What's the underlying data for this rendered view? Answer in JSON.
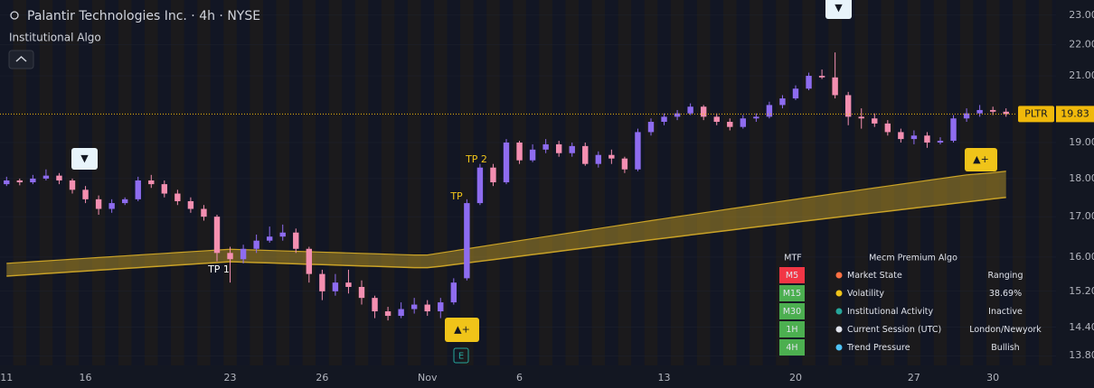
{
  "chart_data": {
    "type": "candlestick",
    "title": "Palantir Technologies Inc. · 4h · NYSE",
    "subtitle": "Institutional Algo",
    "symbol": "PLTR",
    "log_scale": true,
    "ylim": [
      13.6,
      23.53
    ],
    "yticks": [
      {
        "value": 13.8,
        "label": "13.80"
      },
      {
        "value": 14.4,
        "label": "14.40"
      },
      {
        "value": 15.2,
        "label": "15.20"
      },
      {
        "value": 16,
        "label": "16.00"
      },
      {
        "value": 17,
        "label": "17.00"
      },
      {
        "value": 18,
        "label": "18.00"
      },
      {
        "value": 19,
        "label": "19.00"
      },
      {
        "value": 21,
        "label": "21.00"
      },
      {
        "value": 22,
        "label": "22.00"
      },
      {
        "value": 23,
        "label": "23.00"
      }
    ],
    "categories": [
      "11",
      null,
      null,
      null,
      null,
      null,
      "16",
      null,
      null,
      null,
      null,
      null,
      null,
      null,
      null,
      null,
      null,
      "23",
      null,
      null,
      null,
      null,
      null,
      null,
      "26",
      null,
      null,
      null,
      null,
      null,
      null,
      null,
      "Nov",
      null,
      null,
      null,
      null,
      null,
      null,
      "6",
      null,
      null,
      null,
      null,
      null,
      null,
      null,
      null,
      null,
      null,
      "13",
      null,
      null,
      null,
      null,
      null,
      null,
      null,
      null,
      null,
      "20",
      null,
      null,
      null,
      null,
      null,
      null,
      null,
      null,
      "27",
      null,
      null,
      null,
      null,
      null,
      "30",
      null
    ],
    "open": [
      17.85,
      17.95,
      17.9,
      18.0,
      18.08,
      17.95,
      17.7,
      17.45,
      17.2,
      17.35,
      17.45,
      17.95,
      17.85,
      17.6,
      17.4,
      17.2,
      17.0,
      16.1,
      15.95,
      16.2,
      16.4,
      16.5,
      16.6,
      16.2,
      15.6,
      15.2,
      15.4,
      15.3,
      15.05,
      14.75,
      14.65,
      14.8,
      14.9,
      14.75,
      14.95,
      15.5,
      17.35,
      18.3,
      17.9,
      19.0,
      18.5,
      18.8,
      18.95,
      18.7,
      18.9,
      18.4,
      18.65,
      18.55,
      18.25,
      19.3,
      19.6,
      19.75,
      19.85,
      20.05,
      19.75,
      19.6,
      19.45,
      19.7,
      19.75,
      20.1,
      20.3,
      20.6,
      21.0,
      20.95,
      20.4,
      19.75,
      19.7,
      19.55,
      19.3,
      19.1,
      19.2,
      19.0,
      19.05,
      19.7,
      19.85,
      19.95,
      19.9
    ],
    "high": [
      18.05,
      18.0,
      18.1,
      18.25,
      18.15,
      18.0,
      17.8,
      17.55,
      17.45,
      17.5,
      18.05,
      18.1,
      17.95,
      17.7,
      17.5,
      17.3,
      17.05,
      16.25,
      16.3,
      16.55,
      16.75,
      16.8,
      16.7,
      16.25,
      15.7,
      15.6,
      15.7,
      15.45,
      15.1,
      14.85,
      14.95,
      15.05,
      15.0,
      15.05,
      15.5,
      17.45,
      18.4,
      18.4,
      19.1,
      19.05,
      18.95,
      19.1,
      19.05,
      19.0,
      19.0,
      18.75,
      18.8,
      18.6,
      19.4,
      19.7,
      19.85,
      19.95,
      20.15,
      20.1,
      19.85,
      19.7,
      19.8,
      19.85,
      20.2,
      20.4,
      20.7,
      21.1,
      21.2,
      21.75,
      20.5,
      20.0,
      19.85,
      19.65,
      19.4,
      19.35,
      19.3,
      19.15,
      19.8,
      20.0,
      20.1,
      20.05,
      20.0
    ],
    "low": [
      17.8,
      17.82,
      17.85,
      17.95,
      17.85,
      17.6,
      17.35,
      17.05,
      17.1,
      17.3,
      17.4,
      17.75,
      17.5,
      17.3,
      17.1,
      16.9,
      15.9,
      15.4,
      15.85,
      16.1,
      16.35,
      16.4,
      16.1,
      15.4,
      15.0,
      15.1,
      15.15,
      14.9,
      14.6,
      14.55,
      14.6,
      14.7,
      14.65,
      14.6,
      14.9,
      15.45,
      17.3,
      17.8,
      17.85,
      18.4,
      18.45,
      18.7,
      18.6,
      18.6,
      18.35,
      18.3,
      18.4,
      18.15,
      18.2,
      19.2,
      19.5,
      19.65,
      19.8,
      19.65,
      19.5,
      19.35,
      19.4,
      19.6,
      19.7,
      20.0,
      20.25,
      20.55,
      20.9,
      20.3,
      19.5,
      19.4,
      19.45,
      19.2,
      19.0,
      18.95,
      18.85,
      18.95,
      19.0,
      19.6,
      19.75,
      19.8,
      19.75
    ],
    "close": [
      17.95,
      17.9,
      18.0,
      18.08,
      17.95,
      17.7,
      17.45,
      17.2,
      17.35,
      17.45,
      17.95,
      17.85,
      17.6,
      17.4,
      17.2,
      17.0,
      16.1,
      15.95,
      16.2,
      16.4,
      16.5,
      16.6,
      16.2,
      15.6,
      15.2,
      15.4,
      15.3,
      15.05,
      14.75,
      14.65,
      14.8,
      14.9,
      14.75,
      14.95,
      15.4,
      17.35,
      18.3,
      17.9,
      19.0,
      18.5,
      18.8,
      18.95,
      18.7,
      18.9,
      18.4,
      18.65,
      18.55,
      18.25,
      19.3,
      19.6,
      19.75,
      19.85,
      20.05,
      19.75,
      19.6,
      19.45,
      19.7,
      19.75,
      20.1,
      20.3,
      20.6,
      21.0,
      20.95,
      20.4,
      19.75,
      19.7,
      19.55,
      19.3,
      19.1,
      19.2,
      19.0,
      19.05,
      19.7,
      19.85,
      19.95,
      19.9,
      19.83
    ],
    "up_color": "#8e6cf0",
    "down_color": "#f48fb1",
    "band_upper": [
      15.85,
      15.87,
      15.89,
      15.91,
      15.93,
      15.95,
      15.97,
      15.99,
      16.01,
      16.03,
      16.05,
      16.07,
      16.09,
      16.11,
      16.13,
      16.15,
      16.17,
      16.19,
      16.18,
      16.17,
      16.16,
      16.15,
      16.14,
      16.13,
      16.12,
      16.11,
      16.1,
      16.09,
      16.08,
      16.07,
      16.06,
      16.05,
      16.05,
      16.1,
      16.15,
      16.2,
      16.25,
      16.3,
      16.35,
      16.4,
      16.45,
      16.5,
      16.55,
      16.6,
      16.65,
      16.7,
      16.75,
      16.8,
      16.85,
      16.9,
      16.95,
      17.0,
      17.05,
      17.1,
      17.15,
      17.2,
      17.25,
      17.3,
      17.35,
      17.4,
      17.45,
      17.5,
      17.55,
      17.6,
      17.65,
      17.7,
      17.75,
      17.8,
      17.85,
      17.9,
      17.95,
      18.0,
      18.05,
      18.1,
      18.13,
      18.16,
      18.2
    ],
    "band_lower": [
      15.55,
      15.57,
      15.59,
      15.61,
      15.63,
      15.65,
      15.67,
      15.69,
      15.71,
      15.73,
      15.75,
      15.77,
      15.79,
      15.81,
      15.83,
      15.85,
      15.87,
      15.89,
      15.88,
      15.87,
      15.86,
      15.85,
      15.84,
      15.83,
      15.82,
      15.81,
      15.8,
      15.79,
      15.78,
      15.77,
      15.76,
      15.75,
      15.75,
      15.78,
      15.82,
      15.86,
      15.9,
      15.94,
      15.98,
      16.02,
      16.06,
      16.1,
      16.14,
      16.18,
      16.22,
      16.26,
      16.3,
      16.34,
      16.38,
      16.42,
      16.46,
      16.5,
      16.54,
      16.58,
      16.62,
      16.66,
      16.7,
      16.74,
      16.78,
      16.82,
      16.86,
      16.9,
      16.94,
      16.98,
      17.02,
      17.06,
      17.1,
      17.14,
      17.18,
      17.22,
      17.26,
      17.3,
      17.34,
      17.38,
      17.42,
      17.46,
      17.5
    ],
    "band_color": "#c9a227",
    "signals": {
      "tp1": "TP 1",
      "tp": "TP",
      "tp2": "TP 2",
      "sell": "▼",
      "buy": "▲+",
      "earnings": "E"
    },
    "table": {
      "header": [
        "MTF",
        "Mecm Premium Algo"
      ],
      "rows": [
        {
          "tf": "M5",
          "label": "Market State",
          "value": "Ranging",
          "color": "#f23645"
        },
        {
          "tf": "M15",
          "label": "Volatility",
          "value": "38.69%",
          "color": "#4caf50"
        },
        {
          "tf": "M30",
          "label": "Institutional Activity",
          "value": "Inactive",
          "color": "#4caf50"
        },
        {
          "tf": "1H",
          "label": "Current Session (UTC)",
          "value": "London/Newyork",
          "color": "#4caf50"
        },
        {
          "tf": "4H",
          "label": "Trend Pressure",
          "value": "Bullish",
          "color": "#4caf50"
        }
      ]
    }
  }
}
